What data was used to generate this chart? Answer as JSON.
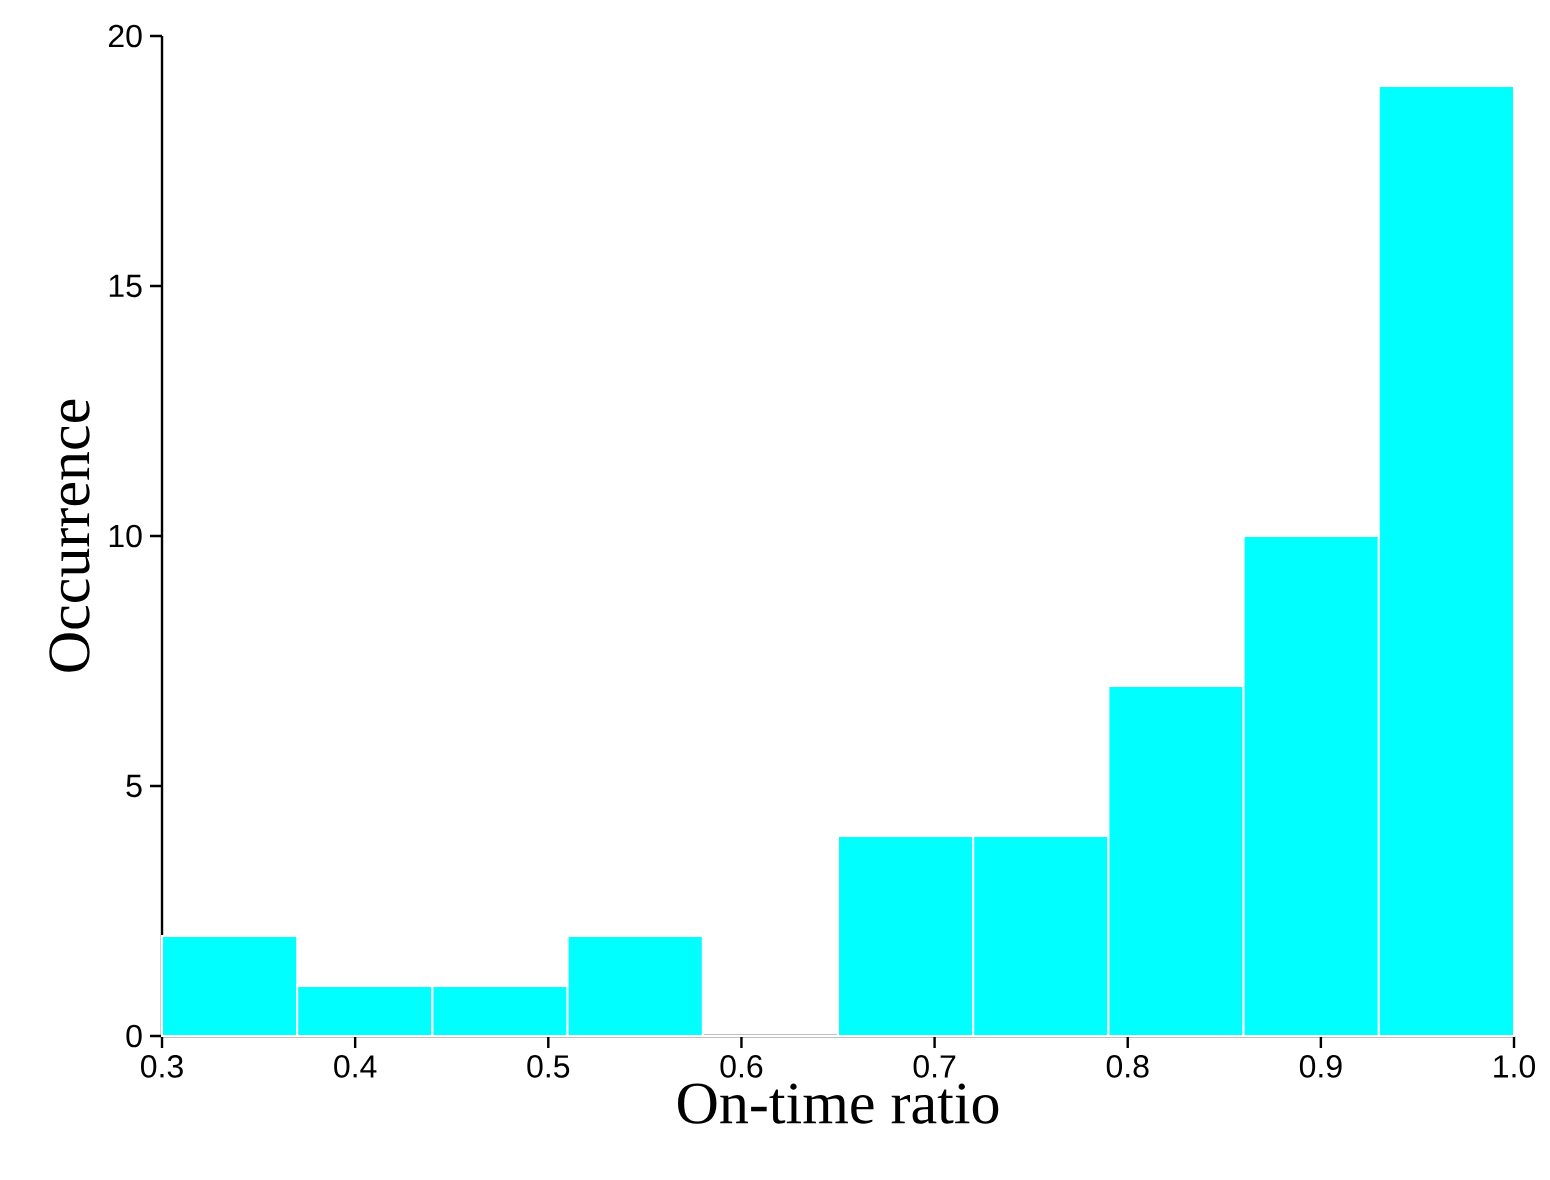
{
  "chart_data": {
    "type": "histogram",
    "xlabel": "On-time ratio",
    "ylabel": "Occurrence",
    "bins": [
      0.3,
      0.37,
      0.44,
      0.51,
      0.58,
      0.65,
      0.72,
      0.79,
      0.86,
      0.93,
      1.0
    ],
    "values": [
      2,
      1,
      1,
      2,
      0,
      4,
      4,
      7,
      10,
      19
    ],
    "color": "#00ffff",
    "xlim": [
      0.3,
      1.0
    ],
    "ylim": [
      0,
      20
    ],
    "xticks": [
      0.3,
      0.4,
      0.5,
      0.6,
      0.7,
      0.8,
      0.9,
      {
        "value": 1.0,
        "label": "1.0"
      }
    ],
    "yticks": [
      0,
      5,
      10,
      15,
      20
    ]
  }
}
